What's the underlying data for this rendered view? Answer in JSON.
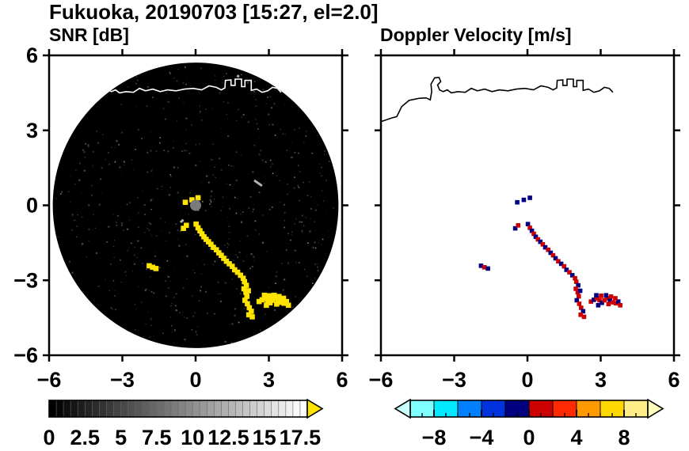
{
  "header": {
    "title": "Fukuoka, 20190703 [15:27, el=2.0]"
  },
  "chart_data": {
    "type": "heatmap",
    "suptitle": "Fukuoka, 20190703 [15:27, el=2.0]",
    "station": "Fukuoka",
    "date": "20190703",
    "time": "15:27",
    "elevation_deg": 2.0,
    "panels": [
      {
        "id": "snr",
        "title": "SNR [dB]",
        "xlim": [
          -6,
          6
        ],
        "ylim": [
          -6,
          6
        ],
        "x_ticks": [
          -6,
          -3,
          0,
          3,
          6
        ],
        "x_tick_labels": [
          "−6",
          "−3",
          "0",
          "3",
          "6"
        ],
        "y_ticks": [
          -6,
          -3,
          0,
          3,
          6
        ],
        "y_tick_labels": [
          "−6",
          "−3",
          "0",
          "3",
          "6"
        ],
        "show_y_labels": true,
        "background": "#000000",
        "scan_radius": 5.85,
        "colorbar": {
          "min": 0,
          "max": 18,
          "style": "grayscale-discrete",
          "cells": 36,
          "tick_values": [
            0,
            2.5,
            5,
            7.5,
            10,
            12.5,
            15,
            17.5
          ],
          "tick_labels": [
            "0",
            "2.5",
            "5",
            "7.5",
            "10",
            "12.5",
            "15",
            "17.5"
          ],
          "over_arrow_color": "#ffe400"
        }
      },
      {
        "id": "vel",
        "title": "Doppler Velocity [m/s]",
        "xlim": [
          -6,
          6
        ],
        "ylim": [
          -6,
          6
        ],
        "x_ticks": [
          -6,
          -3,
          0,
          3,
          6
        ],
        "x_tick_labels": [
          "−6",
          "−3",
          "0",
          "3",
          "6"
        ],
        "y_ticks": [
          -6,
          -3,
          0,
          3,
          6
        ],
        "show_y_labels": false,
        "background": "#ffffff",
        "colorbar": {
          "min": -10,
          "max": 10,
          "style": "segmented",
          "segment_colors": [
            "#7fffff",
            "#00eaff",
            "#0080ff",
            "#0033dd",
            "#000080",
            "#cc0000",
            "#ff2a00",
            "#ff9900",
            "#ffd800",
            "#ffee88"
          ],
          "tick_values": [
            -8,
            -4,
            0,
            4,
            8
          ],
          "tick_labels": [
            "−8",
            "−4",
            "0",
            "4",
            "8"
          ],
          "under_arrow_color": "#c8ffff",
          "over_arrow_color": "#ffffbb"
        }
      }
    ],
    "colors": {
      "snr_echo": "#ffe400",
      "vel_positive": "#cc0000",
      "vel_negative": "#000080",
      "coast_on_snr": "#ffffff",
      "coast_on_vel": "#000000",
      "center_dot": "#7b7b7b",
      "frame": "#000000"
    },
    "coastline": [
      [
        -6.0,
        3.35
      ],
      [
        -5.55,
        3.5
      ],
      [
        -5.35,
        3.55
      ],
      [
        -5.15,
        3.95
      ],
      [
        -4.85,
        4.2
      ],
      [
        -4.45,
        4.28
      ],
      [
        -4.15,
        4.3
      ],
      [
        -3.98,
        4.22
      ],
      [
        -3.92,
        4.55
      ],
      [
        -3.95,
        4.85
      ],
      [
        -3.8,
        5.1
      ],
      [
        -3.62,
        5.12
      ],
      [
        -3.55,
        4.95
      ],
      [
        -3.68,
        4.82
      ],
      [
        -3.6,
        4.62
      ],
      [
        -3.45,
        4.55
      ],
      [
        -3.28,
        4.62
      ],
      [
        -3.12,
        4.5
      ],
      [
        -2.85,
        4.55
      ],
      [
        -2.55,
        4.52
      ],
      [
        -2.3,
        4.68
      ],
      [
        -2.05,
        4.58
      ],
      [
        -1.75,
        4.65
      ],
      [
        -1.45,
        4.55
      ],
      [
        -1.15,
        4.62
      ],
      [
        -0.8,
        4.58
      ],
      [
        -0.45,
        4.65
      ],
      [
        -0.1,
        4.68
      ],
      [
        0.25,
        4.62
      ],
      [
        0.55,
        4.78
      ],
      [
        0.85,
        4.72
      ],
      [
        1.05,
        4.62
      ],
      [
        1.2,
        4.7
      ],
      [
        1.22,
        5.0
      ],
      [
        1.45,
        5.02
      ],
      [
        1.45,
        4.8
      ],
      [
        1.62,
        4.8
      ],
      [
        1.62,
        5.05
      ],
      [
        1.88,
        5.05
      ],
      [
        1.88,
        4.75
      ],
      [
        2.02,
        4.75
      ],
      [
        2.02,
        5.0
      ],
      [
        2.28,
        5.0
      ],
      [
        2.28,
        4.6
      ],
      [
        2.5,
        4.65
      ],
      [
        2.72,
        4.52
      ],
      [
        2.95,
        4.58
      ],
      [
        3.15,
        4.72
      ],
      [
        3.35,
        4.68
      ],
      [
        3.5,
        4.52
      ]
    ],
    "echo_cells": [
      [
        0.02,
        -0.75,
        -1
      ],
      [
        0.1,
        -0.9,
        1
      ],
      [
        0.18,
        -1.02,
        -1
      ],
      [
        0.26,
        -1.14,
        1
      ],
      [
        0.34,
        -1.26,
        -1
      ],
      [
        0.43,
        -1.36,
        1
      ],
      [
        0.53,
        -1.46,
        -1
      ],
      [
        0.63,
        -1.56,
        1
      ],
      [
        0.73,
        -1.68,
        -1
      ],
      [
        0.85,
        -1.78,
        1
      ],
      [
        0.95,
        -1.9,
        -1
      ],
      [
        1.05,
        -2.0,
        1
      ],
      [
        1.15,
        -2.12,
        -1
      ],
      [
        1.26,
        -2.24,
        1
      ],
      [
        1.38,
        -2.34,
        -1
      ],
      [
        1.5,
        -2.44,
        1
      ],
      [
        1.6,
        -2.58,
        -1
      ],
      [
        1.72,
        -2.68,
        1
      ],
      [
        1.84,
        -2.8,
        -1
      ],
      [
        1.95,
        -2.92,
        1
      ],
      [
        2.0,
        -3.06,
        1
      ],
      [
        2.08,
        -3.2,
        -1
      ],
      [
        1.98,
        -3.34,
        1
      ],
      [
        2.06,
        -3.48,
        1
      ],
      [
        2.16,
        -3.42,
        -1
      ],
      [
        2.1,
        -3.64,
        1
      ],
      [
        2.02,
        -3.8,
        -1
      ],
      [
        2.12,
        -3.94,
        1
      ],
      [
        2.2,
        -4.1,
        1
      ],
      [
        2.28,
        -4.24,
        -1
      ],
      [
        2.18,
        -4.38,
        1
      ],
      [
        2.32,
        -4.46,
        1
      ],
      [
        2.6,
        -3.85,
        1
      ],
      [
        2.72,
        -3.78,
        -1
      ],
      [
        2.84,
        -3.72,
        1
      ],
      [
        2.95,
        -3.8,
        1
      ],
      [
        3.05,
        -3.9,
        -1
      ],
      [
        3.15,
        -3.8,
        1
      ],
      [
        3.25,
        -3.72,
        1
      ],
      [
        3.38,
        -3.8,
        -1
      ],
      [
        3.5,
        -3.88,
        1
      ],
      [
        3.62,
        -3.92,
        1
      ],
      [
        3.72,
        -3.85,
        -1
      ],
      [
        3.6,
        -3.72,
        1
      ],
      [
        3.42,
        -3.65,
        1
      ],
      [
        3.22,
        -3.6,
        -1
      ],
      [
        3.02,
        -3.62,
        1
      ],
      [
        2.82,
        -3.6,
        -1
      ],
      [
        3.8,
        -4.0,
        1
      ],
      [
        3.32,
        -3.95,
        1
      ],
      [
        2.9,
        -4.0,
        -1
      ],
      [
        -1.9,
        -2.42,
        -1
      ],
      [
        -1.76,
        -2.48,
        1
      ],
      [
        -1.62,
        -2.53,
        -1
      ],
      [
        -0.5,
        -0.92,
        -1
      ],
      [
        -0.38,
        -0.8,
        1
      ],
      [
        -0.42,
        0.12,
        -1
      ],
      [
        0.1,
        0.3,
        -1
      ],
      [
        -0.15,
        0.22,
        -1
      ]
    ],
    "snr_gray_marks": [
      [
        2.4,
        1.0,
        2.72,
        0.78
      ],
      [
        1.7,
        5.2,
        1.78,
        5.14
      ],
      [
        -0.62,
        -0.68,
        -0.5,
        -0.58
      ]
    ],
    "center_dot": {
      "x": 0,
      "y": 0,
      "radius_px": 7
    }
  }
}
